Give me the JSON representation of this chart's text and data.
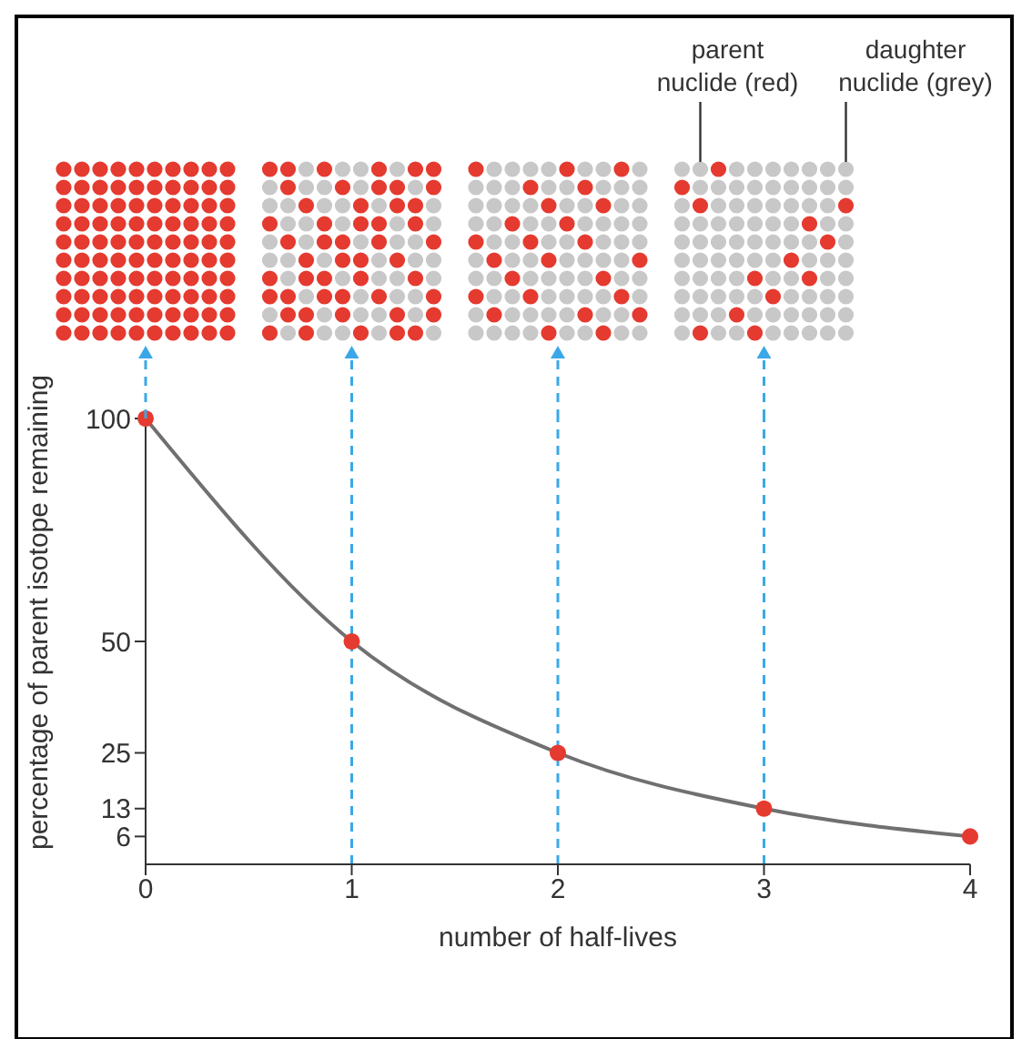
{
  "chart_data": {
    "type": "line",
    "xlabel": "number of half-lives",
    "ylabel": "percentage of parent isotope remaining",
    "x": [
      0,
      1,
      2,
      3,
      4
    ],
    "series": [
      {
        "color": "#707070",
        "marker": "none",
        "values": [
          100,
          50,
          25,
          12.5,
          6.25
        ]
      },
      {
        "type": "scatter",
        "color": "#e53a2f",
        "marker": "circle",
        "values": [
          100,
          50,
          25,
          12.5,
          6.25
        ]
      }
    ],
    "xlim": [
      0,
      4
    ],
    "xticks": [
      0,
      1,
      2,
      3,
      4
    ],
    "ylim": [
      0,
      100
    ],
    "yticks": [
      {
        "value": 6.25,
        "label": "6"
      },
      {
        "value": 12.5,
        "label": "13"
      },
      25,
      50,
      100
    ],
    "ref_lines": [
      {
        "axis": "x",
        "value": 1,
        "color": "#3aa8e8",
        "line_style": "dashed"
      },
      {
        "axis": "x",
        "value": 2,
        "color": "#3aa8e8",
        "line_style": "dashed"
      },
      {
        "axis": "x",
        "value": 3,
        "color": "#3aa8e8",
        "line_style": "dashed"
      }
    ],
    "annotations": [
      "parent nuclide (red)",
      "daughter nuclide (grey)"
    ]
  }
}
